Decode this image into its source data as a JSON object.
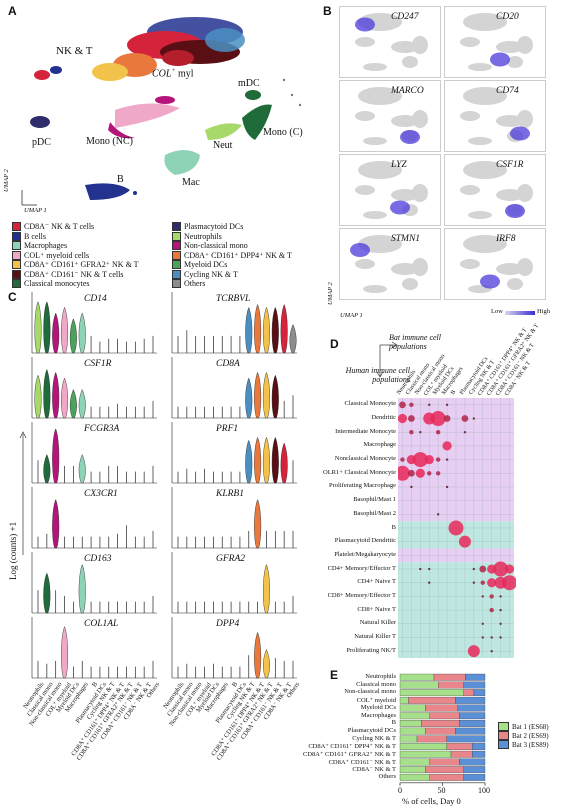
{
  "panelA": {
    "letter": "A",
    "cluster_labels": {
      "nkt": "NK & T",
      "col": "COL",
      "col_sup": "+",
      "col_suffix": " myl",
      "mdc": "mDC",
      "pdc": "pDC",
      "mono_nc": "Mono (NC)",
      "neut": "Neut",
      "mono_c": "Mono (C)",
      "b": "B",
      "mac": "Mac"
    },
    "umap2": "UMAP 2",
    "umap1": "UMAP 1"
  },
  "legend": [
    {
      "label": "CD8A⁻ NK & T cells",
      "color": "#d6233c"
    },
    {
      "label": "B cells",
      "color": "#23318f"
    },
    {
      "label": "Macrophages",
      "color": "#8fd3b7"
    },
    {
      "label": "COL⁺ myeloid cells",
      "color": "#f0a8c8"
    },
    {
      "label": "CD8A⁺ CD161⁺ GFRA2⁺ NK & T",
      "color": "#f2c34a"
    },
    {
      "label": "CD8A⁺ CD161⁻ NK & T cells",
      "color": "#5a0f14"
    },
    {
      "label": "Classical monocytes",
      "color": "#1f6b39"
    },
    {
      "label": "Plasmacytoid DCs",
      "color": "#2d2d6b"
    },
    {
      "label": "Neutrophils",
      "color": "#a6d96a"
    },
    {
      "label": "Non-classical mono",
      "color": "#b5157a"
    },
    {
      "label": "CD8A⁺ CD161⁺ DPP4⁺ NK & T",
      "color": "#e8783c"
    },
    {
      "label": "Myeloid DCs",
      "color": "#4aa35a"
    },
    {
      "label": "Cycling NK & T",
      "color": "#4a8fc2"
    },
    {
      "label": "Others",
      "color": "#8c8c8c"
    }
  ],
  "panelB": {
    "letter": "B",
    "genes": [
      "CD247",
      "CD20",
      "MARCO",
      "CD74",
      "LYZ",
      "CSF1R",
      "STMN1",
      "IRF8"
    ],
    "umap2": "UMAP 2",
    "umap1": "UMAP 1",
    "low": "Low",
    "high": "High"
  },
  "panelC": {
    "letter": "C",
    "ylabel": "Log (counts) +1",
    "left_genes": [
      "CD14",
      "CSF1R",
      "FCGR3A",
      "CX3CR1",
      "CD163",
      "COL1AL"
    ],
    "right_genes": [
      "TCRBVL",
      "CD8A",
      "PRF1",
      "KLRB1",
      "GFRA2",
      "DPP4"
    ],
    "left_xlabels": [
      "Neutrophils",
      "Classical mono",
      "Non-classical mono",
      "COL⁺ myeloid",
      "Myeloid DCs",
      "Macrophages",
      "B",
      "Plasmacytoid DCs",
      "Cycling NK & T",
      "CD8A⁺ CD161⁺ DPP4⁺ NK & T",
      "CD8A⁺ CD161⁺ GFRA2⁺ NK & T",
      "CD8A⁺ CD161⁻ NK & T",
      "CD8A⁻ NK & T",
      "Others"
    ],
    "right_xlabels": [
      "Neutrophils",
      "Classical mono",
      "Non-classical mono",
      "COL⁺ myeloid",
      "Myeloid DCs",
      "Macrophages",
      "B",
      "Plasmacytoid DCs",
      "Cycling NK & T",
      "CD8A⁺ CD161⁺ DPP4⁺ NK & T",
      "CD8A⁺ CD161⁺ GFRA2⁺ NK & T",
      "CD8A⁺ CD161⁻ NK & T",
      "CD8A⁻ NK & T",
      "Others"
    ]
  },
  "panelD": {
    "letter": "D",
    "bat_label": "Bat immune cell populations",
    "human_label": "Human immune cell populations",
    "columns": [
      "Neutrophils",
      "Classical mono",
      "Non-classical mono",
      "COL⁺ myeloid",
      "Myeloid DCs",
      "Macrophages",
      "B",
      "Plasmacytoid DCs",
      "Cycling NK & T",
      "CD8A⁺ CD161⁺ DPP4⁺ NK & T",
      "CD8A⁺ CD161⁺ GFRA2⁺ NK & T",
      "CD8A⁺ CD161⁻ NK & T",
      "CD8A⁻ NK & T"
    ],
    "rows": [
      "Classical Monocyte",
      "Dendritic",
      "Intermediate Monocyte",
      "Macrophage",
      "Nonclassical Monocyte",
      "OLR1+ Classical Monocyte",
      "Proliferating Macrophage",
      "Basophil/Mast 1",
      "Basophil/Mast 2",
      "B",
      "Plasmacytoid Dendritic",
      "Platelet/Megakaryocyte",
      "CD4+ Memory/Effector T",
      "CD4+ Naive T",
      "CD8+ Memory/Effector T",
      "CD8+ Naive T",
      "Natural Killer",
      "Natural Killer T",
      "Proliferating NK/T"
    ],
    "bubbles": [
      [
        0,
        0,
        3
      ],
      [
        0,
        1,
        2
      ],
      [
        0,
        3,
        1
      ],
      [
        0,
        5,
        1
      ],
      [
        1,
        0,
        4
      ],
      [
        1,
        1,
        3
      ],
      [
        1,
        3,
        5
      ],
      [
        1,
        4,
        6
      ],
      [
        1,
        5,
        3
      ],
      [
        1,
        7,
        3
      ],
      [
        1,
        8,
        1
      ],
      [
        2,
        1,
        2
      ],
      [
        2,
        2,
        1
      ],
      [
        2,
        4,
        2
      ],
      [
        2,
        7,
        1
      ],
      [
        3,
        5,
        4
      ],
      [
        4,
        0,
        2
      ],
      [
        4,
        1,
        4
      ],
      [
        4,
        2,
        6
      ],
      [
        4,
        3,
        4
      ],
      [
        4,
        4,
        2
      ],
      [
        4,
        5,
        1
      ],
      [
        5,
        0,
        6
      ],
      [
        5,
        1,
        3
      ],
      [
        5,
        2,
        4
      ],
      [
        5,
        3,
        2
      ],
      [
        5,
        4,
        2
      ],
      [
        6,
        1,
        1
      ],
      [
        6,
        5,
        1
      ],
      [
        8,
        4,
        1
      ],
      [
        9,
        6,
        6
      ],
      [
        10,
        7,
        5
      ],
      [
        12,
        2,
        1
      ],
      [
        12,
        3,
        1
      ],
      [
        12,
        8,
        1
      ],
      [
        12,
        9,
        3
      ],
      [
        12,
        10,
        4
      ],
      [
        12,
        11,
        6
      ],
      [
        12,
        12,
        4
      ],
      [
        13,
        3,
        1
      ],
      [
        13,
        8,
        1
      ],
      [
        13,
        9,
        2
      ],
      [
        13,
        10,
        4
      ],
      [
        13,
        11,
        5
      ],
      [
        13,
        12,
        6
      ],
      [
        14,
        9,
        1
      ],
      [
        14,
        10,
        2
      ],
      [
        14,
        11,
        1
      ],
      [
        15,
        10,
        2
      ],
      [
        15,
        11,
        1
      ],
      [
        16,
        9,
        1
      ],
      [
        16,
        11,
        1
      ],
      [
        17,
        9,
        1
      ],
      [
        17,
        10,
        1
      ],
      [
        17,
        11,
        1
      ],
      [
        18,
        8,
        5
      ],
      [
        18,
        10,
        1
      ]
    ]
  },
  "panelE": {
    "letter": "E",
    "xlabel": "% of cells, Day 0",
    "ticks": [
      "0",
      "50",
      "100"
    ],
    "legend": [
      {
        "label": "Bat 1 (ES68)",
        "color": "#a6e08a"
      },
      {
        "label": "Bat 2 (ES69)",
        "color": "#e8868c"
      },
      {
        "label": "Bat 3 (ES89)",
        "color": "#5b8fd6"
      }
    ],
    "rows": [
      {
        "label": "Neutrophils",
        "v": [
          40,
          37,
          23
        ]
      },
      {
        "label": "Classical mono",
        "v": [
          45,
          30,
          25
        ]
      },
      {
        "label": "Non-classical mono",
        "v": [
          75,
          12,
          13
        ]
      },
      {
        "label": "COL⁺ myeloid",
        "v": [
          10,
          55,
          35
        ]
      },
      {
        "label": "Myeloid DCs",
        "v": [
          30,
          38,
          32
        ]
      },
      {
        "label": "Macrophages",
        "v": [
          35,
          35,
          30
        ]
      },
      {
        "label": "B",
        "v": [
          25,
          45,
          30
        ]
      },
      {
        "label": "Plasmacytoid DCs",
        "v": [
          30,
          35,
          35
        ]
      },
      {
        "label": "Cycling NK & T",
        "v": [
          20,
          35,
          45
        ]
      },
      {
        "label": "CD8A⁺ CD161⁺ DPP4⁺ NK & T",
        "v": [
          55,
          30,
          15
        ]
      },
      {
        "label": "CD8A⁺ CD161⁺ GFRA2⁺ NK & T",
        "v": [
          60,
          25,
          15
        ]
      },
      {
        "label": "CD8A⁺ CD161⁻ NK & T",
        "v": [
          35,
          35,
          30
        ]
      },
      {
        "label": "CD8A⁻ NK & T",
        "v": [
          30,
          45,
          25
        ]
      },
      {
        "label": "Others",
        "v": [
          35,
          40,
          25
        ]
      }
    ]
  }
}
